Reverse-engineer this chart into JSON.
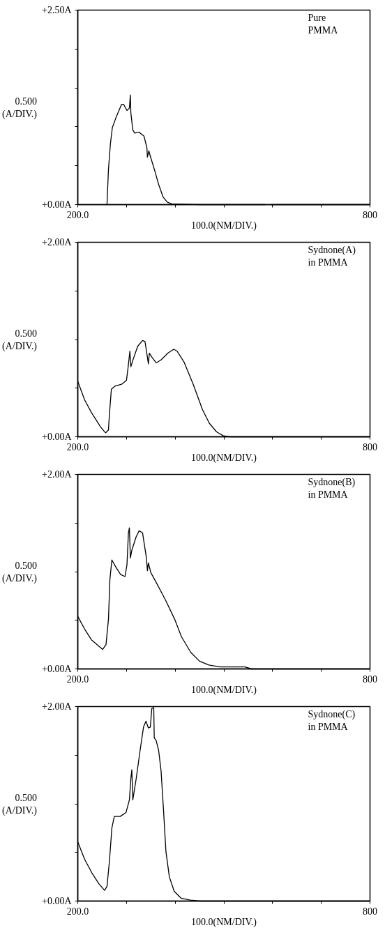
{
  "chart_data": [
    {
      "type": "line",
      "xlabel": "100.0(NM/DIV.)",
      "ylabel": "0.500\n(A/DIV.)",
      "annotations": [
        "Pure\nPMMA"
      ],
      "grid": false,
      "xlim": [
        200,
        800
      ],
      "ylim": [
        0,
        2.5
      ],
      "xticks": [
        {
          "value": 200,
          "label": "200.0"
        },
        {
          "value": 300,
          "label": null
        },
        {
          "value": 400,
          "label": null
        },
        {
          "value": 500,
          "label": null
        },
        {
          "value": 600,
          "label": null
        },
        {
          "value": 700,
          "label": null
        },
        {
          "value": 800,
          "label": "800"
        }
      ],
      "yticks": [
        {
          "value": 0,
          "label": "+0.00A"
        },
        {
          "value": 0.5,
          "label": null
        },
        {
          "value": 1.0,
          "label": null
        },
        {
          "value": 1.5,
          "label": null
        },
        {
          "value": 2.0,
          "label": null
        },
        {
          "value": 2.5,
          "label": "+2.50A"
        }
      ],
      "series": [
        {
          "color": "#000000",
          "x": [
            260,
            263,
            267,
            271,
            278,
            290,
            294,
            301,
            306,
            308,
            309,
            313,
            317,
            326,
            336,
            342,
            343,
            346,
            349,
            356,
            366,
            375,
            384,
            393,
            450,
            585
          ],
          "values": [
            0,
            0.45,
            0.78,
            0.99,
            1.11,
            1.29,
            1.29,
            1.21,
            1.24,
            1.41,
            1.18,
            0.96,
            0.92,
            0.93,
            0.88,
            0.73,
            0.61,
            0.69,
            0.62,
            0.48,
            0.26,
            0.1,
            0.03,
            0.01,
            0,
            0
          ]
        },
        {
          "color": "#000000",
          "x": [
            596,
            700,
            800
          ],
          "values": [
            0,
            0,
            0
          ]
        }
      ]
    },
    {
      "type": "line",
      "xlabel": "100.0(NM/DIV.)",
      "ylabel": "0.500\n(A/DIV.)",
      "annotations": [
        "Sydnone(A)\nin PMMA"
      ],
      "grid": false,
      "xlim": [
        200,
        800
      ],
      "ylim": [
        0,
        2.0
      ],
      "xticks": [
        {
          "value": 200,
          "label": "200.0"
        },
        {
          "value": 300,
          "label": null
        },
        {
          "value": 400,
          "label": null
        },
        {
          "value": 500,
          "label": null
        },
        {
          "value": 600,
          "label": null
        },
        {
          "value": 700,
          "label": null
        },
        {
          "value": 800,
          "label": "800"
        }
      ],
      "yticks": [
        {
          "value": 0,
          "label": "+0.00A"
        },
        {
          "value": 0.5,
          "label": null
        },
        {
          "value": 1.0,
          "label": null
        },
        {
          "value": 1.5,
          "label": null
        },
        {
          "value": 2.0,
          "label": "+2.00A"
        }
      ],
      "series": [
        {
          "color": "#000000",
          "x": [
            200,
            214,
            228,
            247,
            257,
            263,
            265,
            269,
            276,
            290,
            300,
            303,
            307,
            309,
            314,
            323,
            333,
            338,
            342,
            345,
            347,
            352,
            361,
            371,
            385,
            397,
            404,
            418,
            437,
            456,
            470,
            485,
            499,
            513,
            800
          ],
          "values": [
            0.57,
            0.38,
            0.25,
            0.1,
            0.04,
            0.07,
            0.23,
            0.49,
            0.52,
            0.54,
            0.58,
            0.7,
            0.88,
            0.72,
            0.8,
            0.93,
            0.99,
            0.98,
            0.85,
            0.75,
            0.86,
            0.82,
            0.76,
            0.79,
            0.86,
            0.9,
            0.88,
            0.77,
            0.54,
            0.28,
            0.14,
            0.05,
            0.01,
            0,
            0
          ]
        }
      ]
    },
    {
      "type": "line",
      "xlabel": "100.0(NM/DIV.)",
      "ylabel": "0.500\n(A/DIV.)",
      "annotations": [
        "Sydnone(B)\nin PMMA"
      ],
      "grid": false,
      "xlim": [
        200,
        800
      ],
      "ylim": [
        0,
        2.0
      ],
      "xticks": [
        {
          "value": 200,
          "label": "200.0"
        },
        {
          "value": 300,
          "label": null
        },
        {
          "value": 400,
          "label": null
        },
        {
          "value": 500,
          "label": null
        },
        {
          "value": 600,
          "label": null
        },
        {
          "value": 700,
          "label": null
        },
        {
          "value": 800,
          "label": "800"
        }
      ],
      "yticks": [
        {
          "value": 0,
          "label": "+0.00A"
        },
        {
          "value": 0.5,
          "label": null
        },
        {
          "value": 1.0,
          "label": null
        },
        {
          "value": 1.5,
          "label": null
        },
        {
          "value": 2.0,
          "label": "+2.00A"
        }
      ],
      "series": [
        {
          "color": "#000000",
          "x": [
            200,
            214,
            228,
            251,
            258,
            263,
            266,
            270,
            279,
            288,
            297,
            301,
            304,
            306,
            308,
            311,
            320,
            326,
            333,
            337,
            341,
            343,
            345,
            350,
            361,
            380,
            399,
            413,
            432,
            450,
            469,
            492,
            543,
            557,
            800
          ],
          "values": [
            0.54,
            0.41,
            0.3,
            0.2,
            0.25,
            0.51,
            0.92,
            1.12,
            1.04,
            0.97,
            0.95,
            1.07,
            1.4,
            1.45,
            1.14,
            1.22,
            1.36,
            1.42,
            1.4,
            1.27,
            1.14,
            1.01,
            1.09,
            0.99,
            0.89,
            0.71,
            0.51,
            0.33,
            0.17,
            0.08,
            0.04,
            0.02,
            0.02,
            0,
            0
          ]
        }
      ]
    },
    {
      "type": "line",
      "xlabel": "100.0(NM/DIV.)",
      "ylabel": "0.500\n(A/DIV.)",
      "annotations": [
        "Sydnone(C)\nin PMMA"
      ],
      "grid": false,
      "xlim": [
        200,
        800
      ],
      "ylim": [
        0,
        2.0
      ],
      "xticks": [
        {
          "value": 200,
          "label": "200.0"
        },
        {
          "value": 300,
          "label": null
        },
        {
          "value": 400,
          "label": null
        },
        {
          "value": 500,
          "label": null
        },
        {
          "value": 600,
          "label": null
        },
        {
          "value": 700,
          "label": null
        },
        {
          "value": 800,
          "label": "800"
        }
      ],
      "yticks": [
        {
          "value": 0,
          "label": "+0.00A"
        },
        {
          "value": 0.5,
          "label": null
        },
        {
          "value": 1.0,
          "label": null
        },
        {
          "value": 1.5,
          "label": null
        },
        {
          "value": 2.0,
          "label": "+2.00A"
        }
      ],
      "series": [
        {
          "color": "#000000",
          "x": [
            200,
            214,
            229,
            243,
            255,
            260,
            265,
            270,
            275,
            287,
            299,
            306,
            309,
            311,
            313,
            320,
            328,
            335,
            340,
            345,
            349,
            352,
            356,
            357,
            361,
            366,
            371,
            376,
            381,
            388,
            398,
            412,
            431,
            451,
            800
          ],
          "values": [
            0.61,
            0.43,
            0.29,
            0.18,
            0.11,
            0.15,
            0.41,
            0.75,
            0.87,
            0.87,
            0.91,
            1.04,
            1.26,
            1.35,
            1.04,
            1.26,
            1.55,
            1.79,
            1.85,
            1.78,
            1.79,
            1.98,
            1.99,
            1.68,
            1.65,
            1.55,
            1.34,
            0.94,
            0.51,
            0.25,
            0.1,
            0.03,
            0.01,
            0,
            0
          ]
        }
      ]
    }
  ]
}
